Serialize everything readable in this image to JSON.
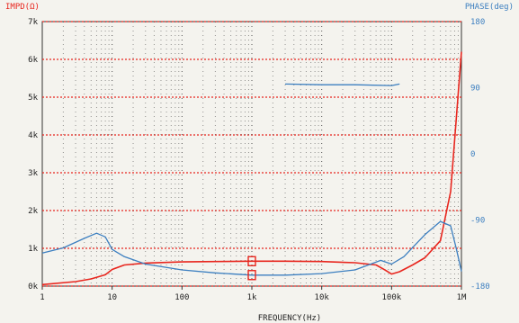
{
  "chart_data": {
    "type": "line",
    "left_axis_title": "IMPD(Ω)",
    "right_axis_title": "PHASE(deg)",
    "xlabel": "FREQUENCY(Hz)",
    "x_scale": "log",
    "xlim": [
      1,
      1000000
    ],
    "x_ticks": [
      1,
      10,
      100,
      1000,
      10000,
      100000,
      1000000
    ],
    "x_tick_labels": [
      "1",
      "10",
      "100",
      "1k",
      "10k",
      "100k",
      "1M"
    ],
    "y_left_lim": [
      0,
      7000
    ],
    "y_left_ticks": [
      0,
      1000,
      2000,
      3000,
      4000,
      5000,
      6000,
      7000
    ],
    "y_left_tick_labels": [
      "0k",
      "1k",
      "2k",
      "3k",
      "4k",
      "5k",
      "6k",
      "7k"
    ],
    "y_right_lim": [
      -180,
      180
    ],
    "y_right_ticks": [
      -180,
      -90,
      0,
      90,
      180
    ],
    "y_right_tick_labels": [
      "-180",
      "-90",
      "0",
      "90",
      "180"
    ],
    "grid": true,
    "series": [
      {
        "axis": "left",
        "color": "#e8261e",
        "x": [
          1,
          3,
          5,
          8,
          10,
          15,
          30,
          100,
          300,
          1000,
          3000,
          10000,
          30000,
          60000,
          80000,
          100000,
          130000,
          200000,
          300000,
          500000,
          700000,
          850000,
          1000000
        ],
        "y": [
          40,
          120,
          190,
          300,
          440,
          560,
          610,
          640,
          650,
          660,
          660,
          650,
          620,
          560,
          430,
          320,
          380,
          560,
          750,
          1200,
          2500,
          4500,
          6200
        ]
      },
      {
        "axis": "right",
        "color": "#3c7fc0",
        "x": [
          1,
          2,
          4,
          6,
          8,
          10,
          15,
          30,
          100,
          300,
          1000,
          3000,
          10000,
          30000,
          70000,
          100000,
          150000,
          300000,
          500000,
          700000,
          850000,
          1000000
        ],
        "y": [
          -135,
          -128,
          -115,
          -108,
          -113,
          -130,
          -140,
          -150,
          -158,
          -162,
          -165,
          -165,
          -163,
          -158,
          -145,
          -150,
          -140,
          -110,
          -92,
          -98,
          -130,
          -160
        ]
      },
      {
        "axis": "right",
        "color": "#3c7fc0",
        "x": [
          3000,
          10000,
          30000,
          100000,
          130000
        ],
        "y": [
          95,
          94,
          94,
          93,
          95
        ]
      }
    ],
    "cursor_x": 1000
  }
}
